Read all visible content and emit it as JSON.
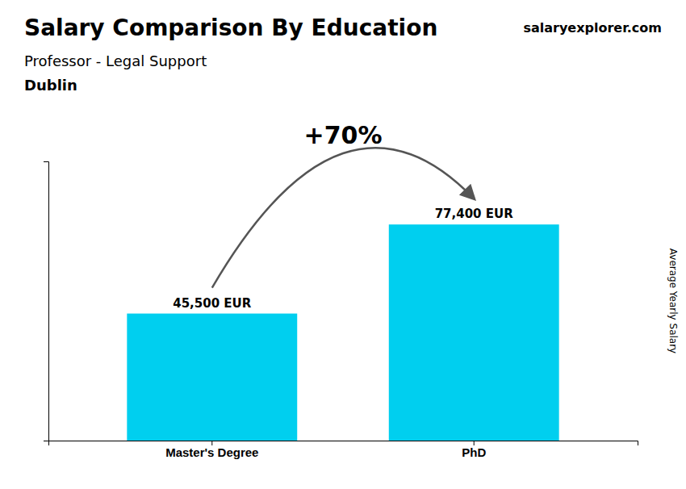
{
  "chart_data": {
    "type": "bar",
    "title": "Salary Comparison By Education",
    "subtitle": "Professor - Legal Support",
    "annotations": [
      "Dublin",
      "salaryexplorer.com",
      "+70%"
    ],
    "ylabel": "Average Yearly Salary",
    "categories": [
      "Master's Degree",
      "PhD"
    ],
    "values": [
      45500,
      77400
    ],
    "value_labels": [
      "45,500 EUR",
      "77,400 EUR"
    ],
    "data_labels": true,
    "color": "#00CFEF",
    "ylim": [
      0,
      100000
    ],
    "grid": false,
    "tick_labels": "x"
  }
}
